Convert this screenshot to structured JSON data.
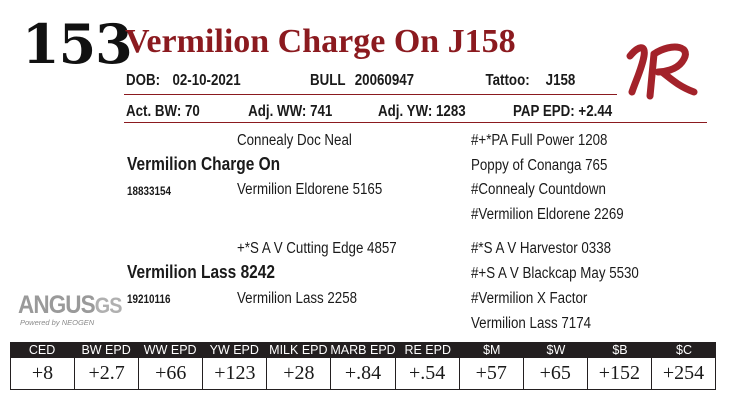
{
  "lot_number": "153",
  "animal_name": "Vermilion Charge On J158",
  "dob_label": "DOB:",
  "dob": "02-10-2021",
  "sex": "BULL",
  "registration": "20060947",
  "tattoo_label": "Tattoo:",
  "tattoo": "J158",
  "act_bw": "Act. BW: 70",
  "adj_ww": "Adj. WW: 741",
  "adj_yw": "Adj. YW: 1283",
  "pap_epd": "PAP EPD: +2.44",
  "pedigree": {
    "sire_sire": "Connealy Doc Neal",
    "sire": "Vermilion Charge On",
    "sire_reg": "18833154",
    "sire_dam": "Vermilion Eldorene 5165",
    "sss": "#+*PA Full Power 1208",
    "ssd": "Poppy of Conanga 765",
    "sds": "#Connealy Countdown",
    "sdd": "#Vermilion Eldorene 2269",
    "dam_sire": "+*S A V Cutting Edge 4857",
    "dam": "Vermilion Lass 8242",
    "dam_reg": "19210116",
    "dam_dam": "Vermilion Lass 2258",
    "dss": "#*S A V Harvestor 0338",
    "dsd": "#+S A V Blackcap May 5530",
    "dds": "#Vermilion X Factor",
    "ddd": "Vermilion Lass 7174"
  },
  "angus_logo": {
    "main": "ANGUS",
    "suffix": "GS",
    "sub": "Powered by NEOGEN"
  },
  "brand_colors": {
    "name_red": "#8b1a1f",
    "header_black": "#231f20"
  },
  "epd": {
    "headers": [
      "CED",
      "BW EPD",
      "WW EPD",
      "YW EPD",
      "MILK EPD",
      "MARB EPD",
      "RE EPD",
      "$M",
      "$W",
      "$B",
      "$C"
    ],
    "values": [
      "+8",
      "+2.7",
      "+66",
      "+123",
      "+28",
      "+.84",
      "+.54",
      "+57",
      "+65",
      "+152",
      "+254"
    ]
  }
}
